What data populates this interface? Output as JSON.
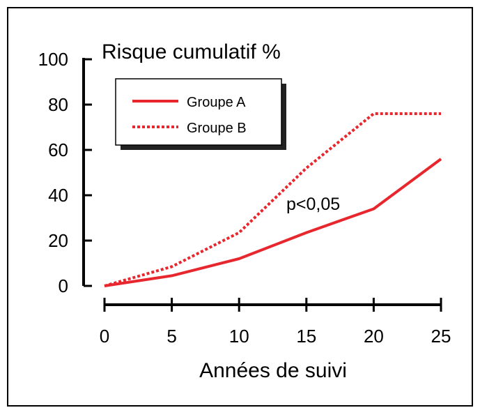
{
  "chart_data": {
    "type": "line",
    "ylabel": "Risque cumulatif %",
    "xlabel": "Années de suivi",
    "annotation": "p<0,05",
    "xlim": [
      0,
      25
    ],
    "ylim": [
      0,
      100
    ],
    "x_ticks": [
      0,
      5,
      10,
      15,
      20,
      25
    ],
    "y_ticks": [
      0,
      20,
      40,
      60,
      80,
      100
    ],
    "legend_position": "top-left",
    "grid": false,
    "series": [
      {
        "name": "Groupe A",
        "style": "solid",
        "color": "#e8262d",
        "points": [
          [
            0,
            0
          ],
          [
            5,
            4.5
          ],
          [
            10,
            12
          ],
          [
            15,
            23.5
          ],
          [
            20,
            34
          ],
          [
            25,
            56
          ]
        ]
      },
      {
        "name": "Groupe B",
        "style": "dotted",
        "color": "#e8262d",
        "points": [
          [
            0,
            0
          ],
          [
            5,
            8.5
          ],
          [
            10,
            23.5
          ],
          [
            15,
            52
          ],
          [
            20,
            76
          ],
          [
            25,
            76
          ]
        ]
      }
    ]
  }
}
